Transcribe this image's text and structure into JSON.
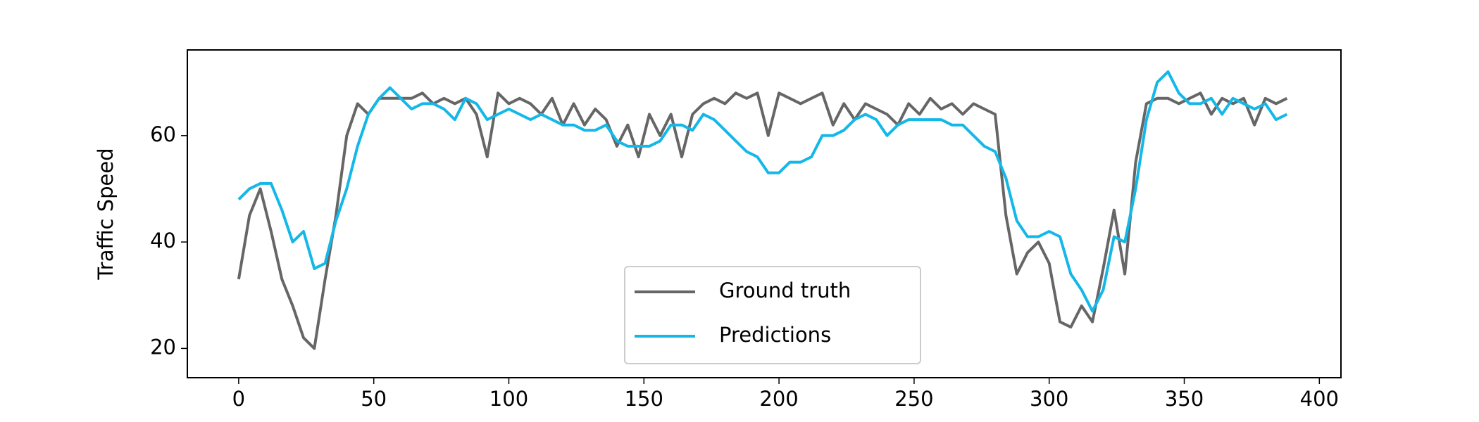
{
  "chart_data": {
    "type": "line",
    "ylabel": "Traffic Speed",
    "x": [
      0,
      4,
      8,
      12,
      16,
      20,
      24,
      28,
      32,
      36,
      40,
      44,
      48,
      52,
      56,
      60,
      64,
      68,
      72,
      76,
      80,
      84,
      88,
      92,
      96,
      100,
      104,
      108,
      112,
      116,
      120,
      124,
      128,
      132,
      136,
      140,
      144,
      148,
      152,
      156,
      160,
      164,
      168,
      172,
      176,
      180,
      184,
      188,
      192,
      196,
      200,
      204,
      208,
      212,
      216,
      220,
      224,
      228,
      232,
      236,
      240,
      244,
      248,
      252,
      256,
      260,
      264,
      268,
      272,
      276,
      280,
      284,
      288,
      292,
      296,
      300,
      304,
      308,
      312,
      316,
      320,
      324,
      328,
      332,
      336,
      340,
      344,
      348,
      352,
      356,
      360,
      364,
      368,
      372,
      376,
      380,
      384,
      388
    ],
    "series": [
      {
        "name": "Ground truth",
        "color": "#666666",
        "values": [
          33,
          45,
          50,
          42,
          33,
          28,
          22,
          20,
          33,
          45,
          60,
          66,
          64,
          67,
          67,
          67,
          67,
          68,
          66,
          67,
          66,
          67,
          64,
          56,
          68,
          66,
          67,
          66,
          64,
          67,
          62,
          66,
          62,
          65,
          63,
          58,
          62,
          56,
          64,
          60,
          64,
          56,
          64,
          66,
          67,
          66,
          68,
          67,
          68,
          60,
          68,
          67,
          66,
          67,
          68,
          62,
          66,
          63,
          66,
          65,
          64,
          62,
          66,
          64,
          67,
          65,
          66,
          64,
          66,
          65,
          64,
          45,
          34,
          38,
          40,
          36,
          25,
          24,
          28,
          25,
          35,
          46,
          34,
          55,
          66,
          67,
          67,
          66,
          67,
          68,
          64,
          67,
          66,
          67,
          62,
          67,
          66,
          67
        ]
      },
      {
        "name": "Predictions",
        "color": "#14b8e8",
        "values": [
          48,
          50,
          51,
          51,
          46,
          40,
          42,
          35,
          36,
          44,
          50,
          58,
          64,
          67,
          69,
          67,
          65,
          66,
          66,
          65,
          63,
          67,
          66,
          63,
          64,
          65,
          64,
          63,
          64,
          63,
          62,
          62,
          61,
          61,
          62,
          59,
          58,
          58,
          58,
          59,
          62,
          62,
          61,
          64,
          63,
          61,
          59,
          57,
          56,
          53,
          53,
          55,
          55,
          56,
          60,
          60,
          61,
          63,
          64,
          63,
          60,
          62,
          63,
          63,
          63,
          63,
          62,
          62,
          60,
          58,
          57,
          52,
          44,
          41,
          41,
          42,
          41,
          34,
          31,
          27,
          31,
          41,
          40,
          50,
          63,
          70,
          72,
          68,
          66,
          66,
          67,
          64,
          67,
          66,
          65,
          66,
          63,
          64
        ]
      }
    ],
    "xlim": [
      -19,
      408
    ],
    "ylim": [
      14.5,
      76.1
    ],
    "xticks": [
      0,
      50,
      100,
      150,
      200,
      250,
      300,
      350,
      400
    ],
    "yticks": [
      20,
      40,
      60
    ],
    "grid": false,
    "legend": "lower center"
  }
}
